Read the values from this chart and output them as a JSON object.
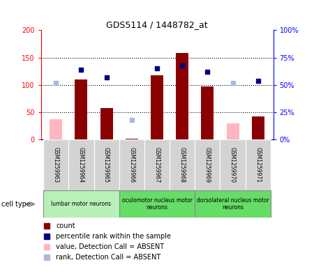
{
  "title": "GDS5114 / 1448782_at",
  "samples": [
    "GSM1259963",
    "GSM1259964",
    "GSM1259965",
    "GSM1259966",
    "GSM1259967",
    "GSM1259968",
    "GSM1259969",
    "GSM1259970",
    "GSM1259971"
  ],
  "count_values": [
    0,
    110,
    58,
    2,
    117,
    158,
    97,
    0,
    42
  ],
  "count_absent": [
    true,
    false,
    false,
    false,
    false,
    false,
    false,
    true,
    false
  ],
  "rank_values": [
    52,
    64,
    57,
    18,
    65,
    68,
    62,
    52,
    54
  ],
  "rank_absent": [
    true,
    false,
    false,
    true,
    false,
    false,
    false,
    true,
    false
  ],
  "absent_count_vals": [
    38,
    0,
    0,
    0,
    0,
    0,
    0,
    30,
    0
  ],
  "absent_rank_vals": [
    52,
    0,
    0,
    18,
    0,
    0,
    0,
    52,
    0
  ],
  "ylim_left": [
    0,
    200
  ],
  "ylim_right": [
    0,
    100
  ],
  "yticks_left": [
    0,
    50,
    100,
    150,
    200
  ],
  "yticks_right": [
    0,
    25,
    50,
    75,
    100
  ],
  "ytick_labels_right": [
    "0%",
    "25%",
    "50%",
    "75%",
    "100%"
  ],
  "cell_groups": [
    {
      "label": "lumbar motor neurons",
      "start": 0,
      "end": 2,
      "color": "#b8f0b8"
    },
    {
      "label": "oculomotor nucleus motor\nneurons",
      "start": 3,
      "end": 5,
      "color": "#66dd66"
    },
    {
      "label": "dorsolateral nucleus motor\nneurons",
      "start": 6,
      "end": 8,
      "color": "#66dd66"
    }
  ],
  "color_count": "#8B0000",
  "color_count_absent": "#ffb6c1",
  "color_rank": "#000080",
  "color_rank_absent": "#aab8d8",
  "bar_width": 0.5,
  "bg_color": "#d3d3d3",
  "plot_bg": "#ffffff",
  "grid_lines": [
    50,
    100,
    150
  ]
}
